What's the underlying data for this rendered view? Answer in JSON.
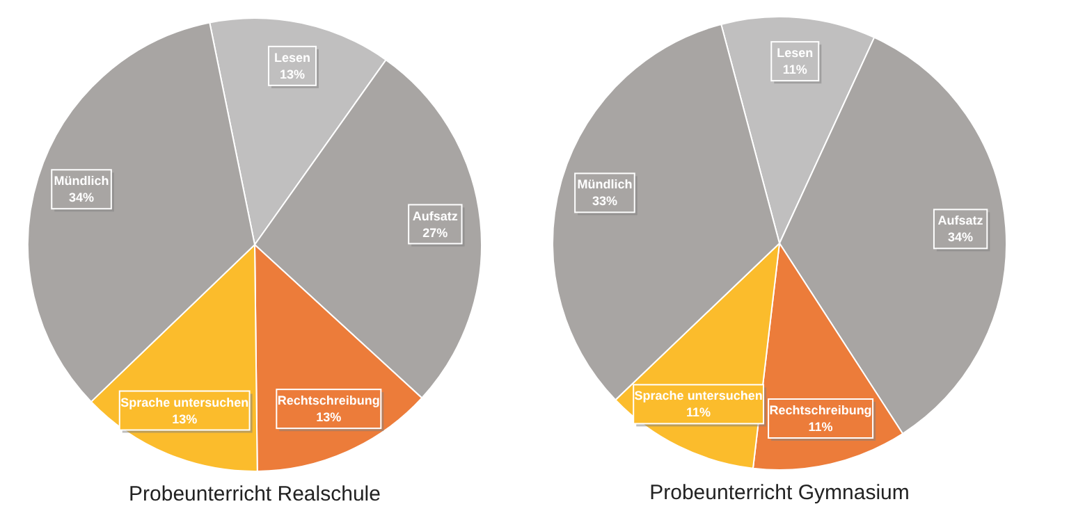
{
  "chart_data": [
    {
      "type": "pie",
      "title": "Probeunterricht Realschule",
      "categories": [
        "Lesen",
        "Aufsatz",
        "Rechtschreibung",
        "Sprache untersuchen",
        "Mündlich"
      ],
      "values": [
        13,
        27,
        13,
        13,
        34
      ],
      "value_labels": [
        "13%",
        "27%",
        "13%",
        "13%",
        "34%"
      ],
      "colors": [
        "#c0bfbf",
        "#a8a5a3",
        "#ec7c3a",
        "#fbbc2c",
        "#a8a5a3"
      ]
    },
    {
      "type": "pie",
      "title": "Probeunterricht Gymnasium",
      "categories": [
        "Lesen",
        "Aufsatz",
        "Rechtschreibung",
        "Sprache untersuchen",
        "Mündlich"
      ],
      "values": [
        11,
        34,
        11,
        11,
        33
      ],
      "value_labels": [
        "11%",
        "34%",
        "11%",
        "11%",
        "33%"
      ],
      "colors": [
        "#c0bfbf",
        "#a8a5a3",
        "#ec7c3a",
        "#fbbc2c",
        "#a8a5a3"
      ]
    }
  ]
}
